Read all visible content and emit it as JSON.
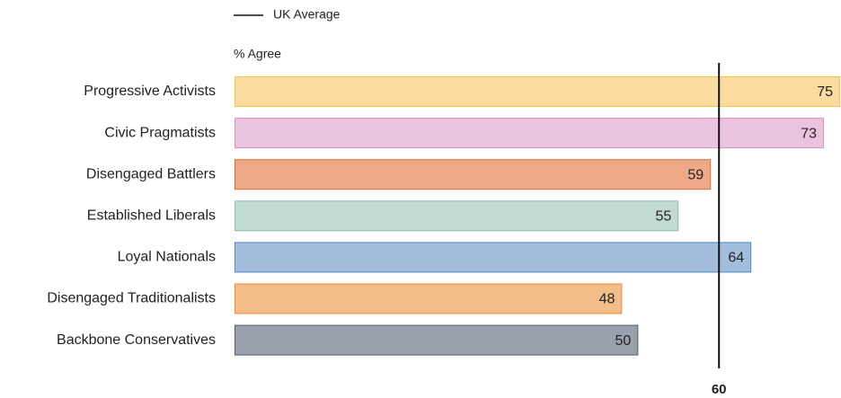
{
  "chart_data": {
    "type": "bar",
    "orientation": "horizontal",
    "x_label": "% Agree",
    "categories": [
      "Progressive Activists",
      "Civic Pragmatists",
      "Disengaged Battlers",
      "Established Liberals",
      "Loyal Nationals",
      "Disengaged Traditionalists",
      "Backbone Conservatives"
    ],
    "values": [
      75,
      73,
      59,
      55,
      64,
      48,
      50
    ],
    "colors": [
      "#fcdc9e",
      "#eac3df",
      "#eeaa88",
      "#c2dbd0",
      "#a3bddc",
      "#f3bd8a",
      "#9aa1ad"
    ],
    "border_colors": [
      "#f4c350",
      "#d990c7",
      "#d6693a",
      "#8cbfaa",
      "#4f88c6",
      "#e88c36",
      "#545e70"
    ],
    "xlim": [
      0,
      75
    ],
    "xticks": [
      60
    ],
    "reference_line": {
      "name": "UK Average",
      "value": 60,
      "color": "#111111"
    }
  }
}
